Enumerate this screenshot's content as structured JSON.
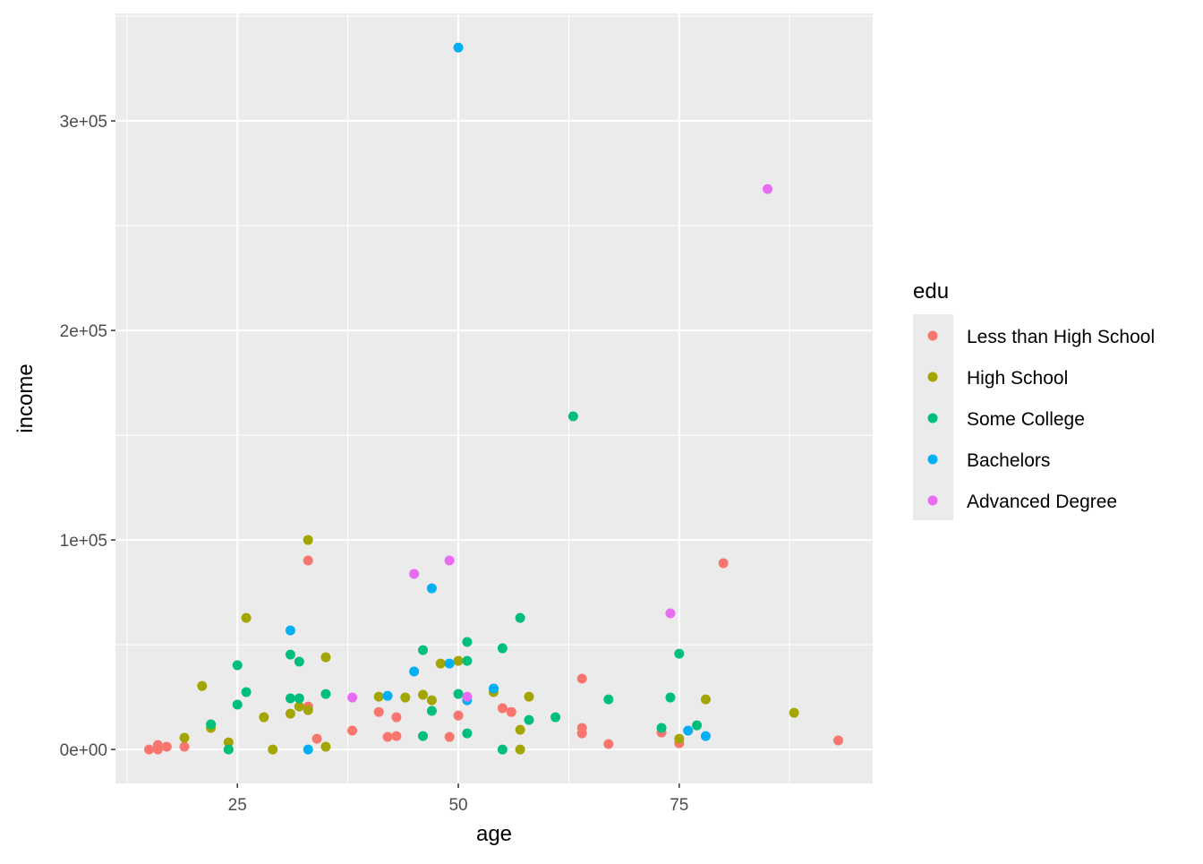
{
  "chart_data": {
    "type": "scatter",
    "title": "",
    "xlabel": "age",
    "ylabel": "income",
    "xlim": [
      11.2,
      96.9
    ],
    "ylim": [
      -16200,
      351300
    ],
    "x_ticks": [
      25,
      50,
      75
    ],
    "x_tick_labels": [
      "25",
      "50",
      "75"
    ],
    "y_ticks": [
      0,
      100000,
      200000,
      300000
    ],
    "y_tick_labels": [
      "0e+00",
      "1e+05",
      "2e+05",
      "3e+05"
    ],
    "grid": true,
    "legend": {
      "title": "edu",
      "placement": "right",
      "entries": [
        "Less than High School",
        "High School",
        "Some College",
        "Bachelors",
        "Advanced Degree"
      ]
    },
    "series": [
      {
        "name": "Less than High School",
        "color": "#F8766D",
        "points": [
          [
            15,
            0
          ],
          [
            16,
            2100
          ],
          [
            16,
            0
          ],
          [
            17,
            1300
          ],
          [
            19,
            1300
          ],
          [
            33,
            90200
          ],
          [
            33,
            20500
          ],
          [
            34,
            5100
          ],
          [
            38,
            9000
          ],
          [
            41,
            17900
          ],
          [
            42,
            6000
          ],
          [
            43,
            6400
          ],
          [
            43,
            15400
          ],
          [
            49,
            6000
          ],
          [
            50,
            16200
          ],
          [
            55,
            19700
          ],
          [
            56,
            17900
          ],
          [
            64,
            33800
          ],
          [
            64,
            10300
          ],
          [
            64,
            7700
          ],
          [
            67,
            2600
          ],
          [
            73,
            8100
          ],
          [
            75,
            3000
          ],
          [
            80,
            88900
          ],
          [
            93,
            4300
          ]
        ]
      },
      {
        "name": "High School",
        "color": "#A3A500",
        "points": [
          [
            19,
            5600
          ],
          [
            21,
            30300
          ],
          [
            22,
            10300
          ],
          [
            24,
            3400
          ],
          [
            26,
            62800
          ],
          [
            28,
            15400
          ],
          [
            29,
            0
          ],
          [
            31,
            17100
          ],
          [
            32,
            20500
          ],
          [
            33,
            100000
          ],
          [
            33,
            18800
          ],
          [
            35,
            44000
          ],
          [
            35,
            1300
          ],
          [
            41,
            25200
          ],
          [
            44,
            24800
          ],
          [
            46,
            26100
          ],
          [
            47,
            23500
          ],
          [
            48,
            41000
          ],
          [
            50,
            42300
          ],
          [
            54,
            27400
          ],
          [
            57,
            9400
          ],
          [
            57,
            0
          ],
          [
            58,
            25200
          ],
          [
            75,
            5100
          ],
          [
            78,
            23900
          ],
          [
            88,
            17500
          ]
        ]
      },
      {
        "name": "Some College",
        "color": "#00BF7D",
        "points": [
          [
            22,
            12000
          ],
          [
            24,
            0
          ],
          [
            25,
            40200
          ],
          [
            25,
            21400
          ],
          [
            26,
            27400
          ],
          [
            31,
            45300
          ],
          [
            31,
            24400
          ],
          [
            32,
            41900
          ],
          [
            32,
            24400
          ],
          [
            35,
            26500
          ],
          [
            46,
            47400
          ],
          [
            46,
            6400
          ],
          [
            47,
            18400
          ],
          [
            50,
            26500
          ],
          [
            51,
            51300
          ],
          [
            51,
            42300
          ],
          [
            51,
            7700
          ],
          [
            55,
            48300
          ],
          [
            55,
            0
          ],
          [
            57,
            62800
          ],
          [
            58,
            14100
          ],
          [
            61,
            15400
          ],
          [
            63,
            159000
          ],
          [
            67,
            23900
          ],
          [
            73,
            10300
          ],
          [
            74,
            24800
          ],
          [
            75,
            45700
          ],
          [
            77,
            11500
          ]
        ]
      },
      {
        "name": "Bachelors",
        "color": "#00B0F6",
        "points": [
          [
            31,
            56800
          ],
          [
            33,
            0
          ],
          [
            42,
            25600
          ],
          [
            45,
            37200
          ],
          [
            47,
            76900
          ],
          [
            49,
            41000
          ],
          [
            50,
            335000
          ],
          [
            51,
            23500
          ],
          [
            54,
            29100
          ],
          [
            76,
            9000
          ],
          [
            78,
            6400
          ]
        ]
      },
      {
        "name": "Advanced Degree",
        "color": "#E76BF3",
        "points": [
          [
            38,
            24800
          ],
          [
            45,
            83800
          ],
          [
            49,
            90200
          ],
          [
            51,
            25200
          ],
          [
            74,
            65000
          ],
          [
            85,
            267500
          ]
        ]
      }
    ]
  }
}
